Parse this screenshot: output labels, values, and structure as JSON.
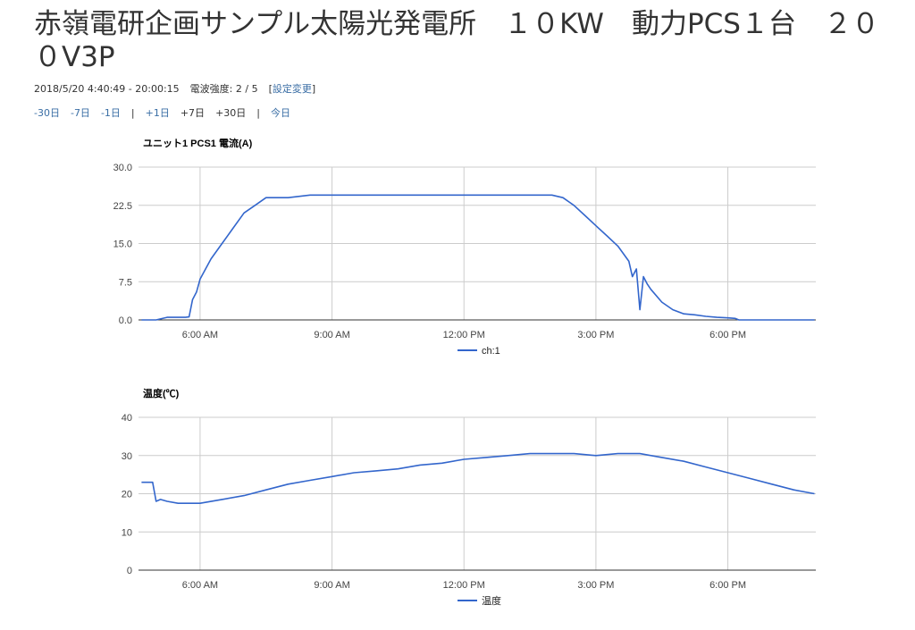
{
  "page": {
    "title": "赤嶺電研企画サンプル太陽光発電所　１０KW　動力PCS１台　２００V3P",
    "date_range": "2018/5/20 4:40:49 - 20:00:15",
    "signal_label": "電波強度: 2 / 5",
    "settings_bracket_open": "[",
    "settings_link": "設定変更",
    "settings_bracket_close": "]",
    "nav": [
      {
        "label": "-30日",
        "style": "link"
      },
      {
        "label": "-7日",
        "style": "link"
      },
      {
        "label": "-1日",
        "style": "link"
      },
      {
        "label": "|",
        "style": "sep"
      },
      {
        "label": "+1日",
        "style": "link"
      },
      {
        "label": "+7日",
        "style": "plain"
      },
      {
        "label": "+30日",
        "style": "plain"
      },
      {
        "label": "|",
        "style": "sep"
      },
      {
        "label": "今日",
        "style": "link"
      }
    ]
  },
  "colors": {
    "series": "#3366cc",
    "grid": "#cccccc",
    "axis": "#333333",
    "link": "#3a6ea5"
  },
  "chart_data": [
    {
      "type": "line",
      "title": "ユニット1 PCS1 電流(A)",
      "xlabel": "",
      "ylabel": "",
      "x_unit": "hours of day",
      "xlim": [
        4.6,
        20.0
      ],
      "ylim": [
        0,
        30
      ],
      "yticks": [
        0,
        7.5,
        15,
        22.5,
        30
      ],
      "ytick_labels": [
        "0.0",
        "7.5",
        "15.0",
        "22.5",
        "30.0"
      ],
      "xticks": [
        6,
        9,
        12,
        15,
        18
      ],
      "xtick_labels": [
        "6:00 AM",
        "9:00 AM",
        "12:00 PM",
        "3:00 PM",
        "6:00 PM"
      ],
      "grid": true,
      "legend_position": "bottom",
      "series": [
        {
          "name": "ch:1",
          "x": [
            4.67,
            5.0,
            5.25,
            5.5,
            5.67,
            5.75,
            5.83,
            5.92,
            6.0,
            6.25,
            6.5,
            6.75,
            7.0,
            7.25,
            7.5,
            7.75,
            8.0,
            8.5,
            9.0,
            9.5,
            10.0,
            10.5,
            11.0,
            11.5,
            12.0,
            12.5,
            13.0,
            13.5,
            14.0,
            14.25,
            14.5,
            14.75,
            15.0,
            15.25,
            15.5,
            15.75,
            15.83,
            15.92,
            16.0,
            16.08,
            16.17,
            16.25,
            16.5,
            16.75,
            17.0,
            17.25,
            17.5,
            17.75,
            18.0,
            18.17,
            18.25,
            19.0,
            19.5,
            19.97
          ],
          "values": [
            0.0,
            0.0,
            0.5,
            0.5,
            0.5,
            0.6,
            4.0,
            5.5,
            8.0,
            12.0,
            15.0,
            18.0,
            21.0,
            22.5,
            24.0,
            24.0,
            24.0,
            24.5,
            24.5,
            24.5,
            24.5,
            24.5,
            24.5,
            24.5,
            24.5,
            24.5,
            24.5,
            24.5,
            24.5,
            24.0,
            22.5,
            20.5,
            18.5,
            16.5,
            14.5,
            11.5,
            8.5,
            10.0,
            2.0,
            8.5,
            7.0,
            6.0,
            3.5,
            2.0,
            1.2,
            1.0,
            0.7,
            0.5,
            0.4,
            0.3,
            0.0,
            0.0,
            0.0,
            0.0
          ]
        }
      ]
    },
    {
      "type": "line",
      "title": "温度(℃)",
      "xlabel": "",
      "ylabel": "",
      "x_unit": "hours of day",
      "xlim": [
        4.6,
        20.0
      ],
      "ylim": [
        0,
        40
      ],
      "yticks": [
        0,
        10,
        20,
        30,
        40
      ],
      "ytick_labels": [
        "0",
        "10",
        "20",
        "30",
        "40"
      ],
      "xticks": [
        6,
        9,
        12,
        15,
        18
      ],
      "xtick_labels": [
        "6:00 AM",
        "9:00 AM",
        "12:00 PM",
        "3:00 PM",
        "6:00 PM"
      ],
      "grid": true,
      "legend_position": "bottom",
      "series": [
        {
          "name": "温度",
          "x": [
            4.67,
            4.92,
            5.0,
            5.1,
            5.25,
            5.5,
            5.75,
            6.0,
            6.5,
            7.0,
            7.5,
            8.0,
            8.5,
            9.0,
            9.5,
            10.0,
            10.5,
            11.0,
            11.5,
            12.0,
            12.5,
            13.0,
            13.5,
            14.0,
            14.5,
            15.0,
            15.5,
            16.0,
            16.5,
            17.0,
            17.5,
            18.0,
            18.5,
            19.0,
            19.5,
            19.97
          ],
          "values": [
            23.0,
            23.0,
            18.0,
            18.5,
            18.0,
            17.5,
            17.5,
            17.5,
            18.5,
            19.5,
            21.0,
            22.5,
            23.5,
            24.5,
            25.5,
            26.0,
            26.5,
            27.5,
            28.0,
            29.0,
            29.5,
            30.0,
            30.5,
            30.5,
            30.5,
            30.0,
            30.5,
            30.5,
            29.5,
            28.5,
            27.0,
            25.5,
            24.0,
            22.5,
            21.0,
            20.0
          ]
        }
      ]
    }
  ]
}
